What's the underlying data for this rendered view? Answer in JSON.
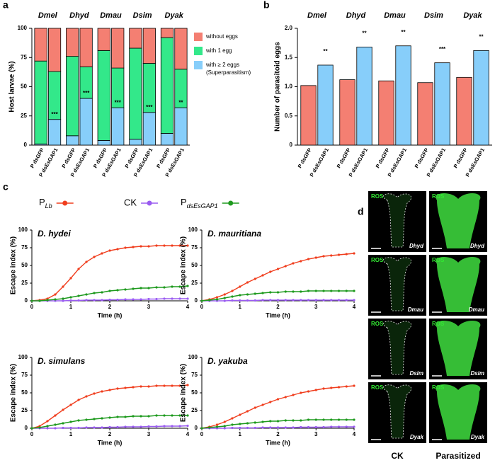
{
  "panel_labels": [
    "a",
    "b",
    "c",
    "d"
  ],
  "chart_data": [
    {
      "type": "stacked-bar",
      "ylabel": "Host larvae (%)",
      "groups": [
        "Dmel",
        "Dhyd",
        "Dmau",
        "Dsim",
        "Dyak"
      ],
      "categories": [
        "P dsGFP",
        "P dsEsGAP1",
        "P dsGFP",
        "P dsEsGAP1",
        "P dsGFP",
        "P dsEsGAP1",
        "P dsGFP",
        "P dsEsGAP1",
        "P dsGFP",
        "P dsEsGAP1"
      ],
      "series": [
        {
          "name": "with ≥ 2 eggs",
          "color": "#87cefa",
          "values": [
            1,
            22,
            8,
            40,
            4,
            32,
            5,
            28,
            10,
            32
          ]
        },
        {
          "name": "with 1 egg",
          "color": "#33e88a",
          "values": [
            71,
            41,
            68,
            27,
            77,
            34,
            78,
            42,
            82,
            33
          ]
        },
        {
          "name": "without eggs",
          "color": "#f47f72",
          "values": [
            28,
            37,
            24,
            33,
            19,
            34,
            17,
            30,
            8,
            35
          ]
        }
      ],
      "legend_note": "(Superparasitism)",
      "annotations": [
        null,
        "***",
        null,
        "***",
        null,
        "***",
        null,
        "***",
        null,
        "**"
      ],
      "ylim": [
        0,
        100
      ],
      "yticks": [
        0,
        25,
        50,
        75,
        100
      ]
    },
    {
      "type": "bar",
      "ylabel": "Number of parasitoid eggs",
      "groups": [
        "Dmel",
        "Dhyd",
        "Dmau",
        "Dsim",
        "Dyak"
      ],
      "categories": [
        "P dsGFP",
        "P dsEsGAP1",
        "P dsGFP",
        "P dsEsGAP1",
        "P dsGFP",
        "P dsEsGAP1",
        "P dsGFP",
        "P dsEsGAP1",
        "P dsGFP",
        "P dsEsGAP1"
      ],
      "values": [
        1.02,
        1.37,
        1.12,
        1.68,
        1.1,
        1.7,
        1.07,
        1.41,
        1.16,
        1.62
      ],
      "colors": [
        "#f47f72",
        "#87cefa",
        "#f47f72",
        "#87cefa",
        "#f47f72",
        "#87cefa",
        "#f47f72",
        "#87cefa",
        "#f47f72",
        "#87cefa"
      ],
      "annotations": [
        null,
        "**",
        null,
        "**",
        null,
        "**",
        null,
        "***",
        null,
        "**"
      ],
      "ylim": [
        0,
        2
      ],
      "yticks": [
        0,
        0.5,
        {
          "value": 1,
          "label": "1.0"
        },
        1.5,
        {
          "value": 2,
          "label": "2.0"
        }
      ]
    },
    {
      "type": "line-group",
      "legend": [
        {
          "name": "PLb",
          "color": "#f03e1e"
        },
        {
          "name": "CK",
          "color": "#9a5cf0"
        },
        {
          "name": "PdsEsGAP1",
          "color": "#1e9a1e"
        }
      ],
      "charts": [
        {
          "type": "line",
          "title": "D. hydei",
          "xlabel": "Time (h)",
          "ylabel": "Escape index (%)",
          "x": [
            0,
            0.2,
            0.4,
            0.6,
            0.8,
            1,
            1.2,
            1.4,
            1.6,
            1.8,
            2,
            2.2,
            2.4,
            2.6,
            2.8,
            3,
            3.2,
            3.4,
            3.6,
            3.8,
            4
          ],
          "series": [
            {
              "values": [
                0,
                1,
                3,
                9,
                20,
                32,
                45,
                55,
                62,
                67,
                71,
                73,
                75,
                76,
                77,
                77,
                78,
                78,
                78,
                78,
                78
              ]
            },
            {
              "values": [
                0,
                0,
                0,
                0,
                0,
                0.5,
                0.5,
                1,
                1,
                1,
                1.5,
                1.5,
                2,
                2,
                2,
                2.5,
                2.5,
                3,
                3,
                3,
                3
              ]
            },
            {
              "values": [
                0,
                0,
                1,
                2,
                3,
                5,
                7,
                9,
                11,
                12,
                14,
                15,
                16,
                17,
                18,
                18,
                19,
                19,
                20,
                20,
                21
              ]
            }
          ],
          "xlim": [
            0,
            4
          ],
          "xticks": [
            0,
            1,
            2,
            3,
            4
          ],
          "ylim": [
            0,
            100
          ],
          "yticks": [
            0,
            25,
            50,
            75,
            100
          ]
        },
        {
          "type": "line",
          "title": "D. mauritiana",
          "xlabel": "Time (h)",
          "ylabel": "Escape index (%)",
          "x": [
            0,
            0.2,
            0.4,
            0.6,
            0.8,
            1,
            1.2,
            1.4,
            1.6,
            1.8,
            2,
            2.2,
            2.4,
            2.6,
            2.8,
            3,
            3.2,
            3.4,
            3.6,
            3.8,
            4
          ],
          "series": [
            {
              "values": [
                0,
                2,
                5,
                9,
                14,
                20,
                26,
                31,
                36,
                41,
                45,
                49,
                53,
                56,
                59,
                61,
                63,
                64,
                65,
                66,
                67
              ]
            },
            {
              "values": [
                0,
                0,
                0,
                0,
                0.5,
                0.5,
                0.5,
                0.5,
                1,
                1,
                1,
                1,
                1,
                1,
                1,
                1,
                1,
                1,
                1,
                1,
                1
              ]
            },
            {
              "values": [
                0,
                1,
                2,
                4,
                6,
                8,
                9,
                10,
                11,
                12,
                12,
                13,
                13,
                13,
                14,
                14,
                14,
                14,
                14,
                14,
                14
              ]
            }
          ],
          "xlim": [
            0,
            4
          ],
          "xticks": [
            0,
            1,
            2,
            3,
            4
          ],
          "ylim": [
            0,
            100
          ],
          "yticks": [
            0,
            25,
            50,
            75,
            100
          ]
        },
        {
          "type": "line",
          "title": "D. simulans",
          "xlabel": "Time (h)",
          "ylabel": "Escape index (%)",
          "x": [
            0,
            0.2,
            0.4,
            0.6,
            0.8,
            1,
            1.2,
            1.4,
            1.6,
            1.8,
            2,
            2.2,
            2.4,
            2.6,
            2.8,
            3,
            3.2,
            3.4,
            3.6,
            3.8,
            4
          ],
          "series": [
            {
              "values": [
                0,
                3,
                10,
                18,
                26,
                33,
                40,
                45,
                49,
                52,
                54,
                56,
                57,
                58,
                59,
                59,
                60,
                60,
                60,
                60,
                61
              ]
            },
            {
              "values": [
                0,
                0,
                0,
                0,
                0.5,
                0.5,
                0.5,
                1,
                1,
                1,
                1.5,
                1.5,
                2,
                2,
                2,
                2.5,
                2.5,
                3,
                3,
                3,
                3.5
              ]
            },
            {
              "values": [
                0,
                1,
                3,
                5,
                7,
                9,
                11,
                12,
                13,
                14,
                15,
                16,
                16,
                17,
                17,
                17,
                18,
                18,
                18,
                18,
                18
              ]
            }
          ],
          "xlim": [
            0,
            4
          ],
          "xticks": [
            0,
            1,
            2,
            3,
            4
          ],
          "ylim": [
            0,
            100
          ],
          "yticks": [
            0,
            25,
            50,
            75,
            100
          ]
        },
        {
          "type": "line",
          "title": "D. yakuba",
          "xlabel": "Time (h)",
          "ylabel": "Escape index (%)",
          "x": [
            0,
            0.2,
            0.4,
            0.6,
            0.8,
            1,
            1.2,
            1.4,
            1.6,
            1.8,
            2,
            2.2,
            2.4,
            2.6,
            2.8,
            3,
            3.2,
            3.4,
            3.6,
            3.8,
            4
          ],
          "series": [
            {
              "values": [
                0,
                2,
                5,
                9,
                14,
                19,
                24,
                29,
                33,
                37,
                41,
                44,
                47,
                50,
                52,
                54,
                56,
                57,
                58,
                59,
                60
              ]
            },
            {
              "values": [
                0,
                0,
                0,
                0,
                0.5,
                0.5,
                0.5,
                0.5,
                1,
                1,
                1,
                1,
                1,
                1.5,
                1.5,
                1.5,
                1.5,
                2,
                2,
                2,
                2
              ]
            },
            {
              "values": [
                0,
                1,
                2,
                3,
                5,
                6,
                7,
                8,
                9,
                10,
                10,
                11,
                11,
                11,
                12,
                12,
                12,
                12,
                12,
                12,
                12
              ]
            }
          ],
          "xlim": [
            0,
            4
          ],
          "xticks": [
            0,
            1,
            2,
            3,
            4
          ],
          "ylim": [
            0,
            100
          ],
          "yticks": [
            0,
            25,
            50,
            75,
            100
          ]
        }
      ]
    }
  ],
  "images": {
    "columns": [
      "CK",
      "Parasitized"
    ],
    "rows": [
      {
        "stain": "ROS",
        "species": "Dhyd"
      },
      {
        "stain": "ROS",
        "species": "Dmau"
      },
      {
        "stain": "ROS",
        "species": "Dsim"
      },
      {
        "stain": "ROS",
        "species": "Dyak"
      }
    ]
  }
}
